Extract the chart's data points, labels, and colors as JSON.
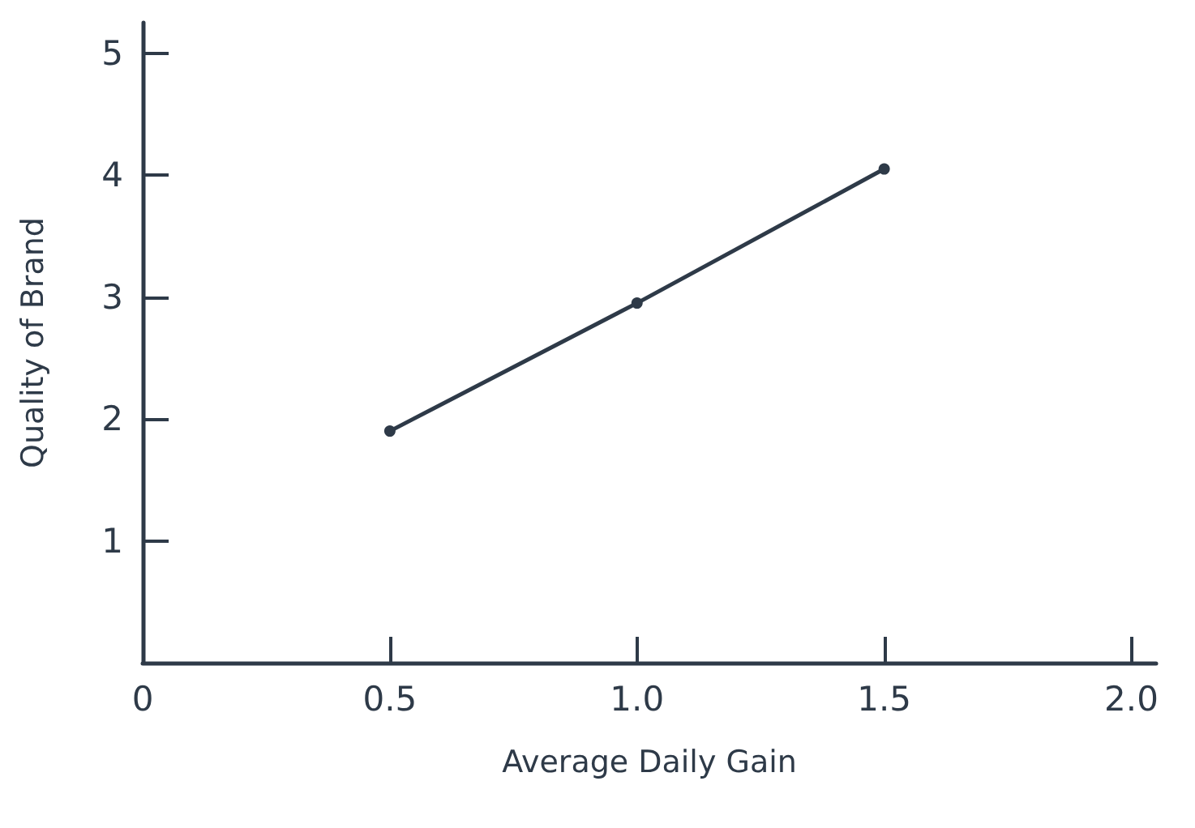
{
  "chart_data": {
    "type": "line",
    "xlabel": "Average Daily Gain",
    "ylabel": "Quality of Brand",
    "x": [
      0.5,
      1.0,
      1.5
    ],
    "series": [
      {
        "color": "#2e3a48",
        "values": [
          1.9,
          2.95,
          4.05
        ]
      }
    ],
    "xlim": [
      0,
      2.05
    ],
    "xticks": [
      0,
      0.5,
      {
        "value": 1,
        "label": "1.0"
      },
      1.5,
      {
        "value": 2,
        "label": "2.0"
      }
    ],
    "ylim": [
      0,
      5.25
    ],
    "yticks": [
      1,
      2,
      3,
      4,
      5
    ],
    "marker": "circle",
    "line_style": "solid"
  }
}
